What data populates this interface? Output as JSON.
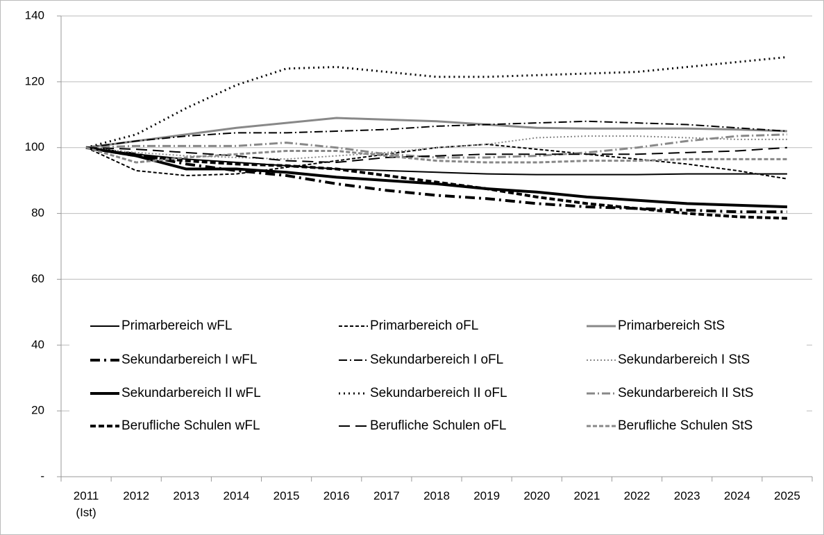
{
  "chart_data": {
    "type": "line",
    "categories": [
      "2011 (Ist)",
      "2012",
      "2013",
      "2014",
      "2015",
      "2016",
      "2017",
      "2018",
      "2019",
      "2020",
      "2021",
      "2022",
      "2023",
      "2024",
      "2025"
    ],
    "ylim": [
      0,
      140
    ],
    "yticks": [
      {
        "value": 0,
        "label": "-"
      },
      20,
      40,
      60,
      80,
      100,
      120,
      140
    ],
    "grid": true,
    "legend": "bottom",
    "series": [
      {
        "name": "Primarbereich wFL",
        "color": "#000000",
        "width": 2,
        "dash": "none",
        "values": [
          100,
          98,
          96.5,
          95.5,
          94.5,
          93.5,
          93,
          92.5,
          92,
          91.8,
          91.8,
          91.8,
          92,
          92,
          92
        ]
      },
      {
        "name": "Primarbereich oFL",
        "color": "#000000",
        "width": 2,
        "dash": "5 3",
        "values": [
          100,
          93,
          91.5,
          92,
          94,
          96,
          98,
          100,
          101,
          99.5,
          98,
          96.5,
          95,
          93,
          90.5
        ]
      },
      {
        "name": "Primarbereich StS",
        "color": "#888888",
        "width": 3,
        "dash": "none",
        "values": [
          100,
          102,
          104,
          106,
          107.5,
          109,
          108.5,
          108,
          107,
          106,
          105.8,
          105.8,
          105.8,
          105.5,
          105
        ]
      },
      {
        "name": "Sekundarbereich I wFL",
        "color": "#000000",
        "width": 4,
        "dash": "14 6 3 6",
        "values": [
          100,
          98,
          95,
          93,
          91.5,
          89,
          87,
          85.5,
          84.5,
          83,
          82,
          81.5,
          81,
          80.5,
          80.5
        ]
      },
      {
        "name": "Sekundarbereich I oFL",
        "color": "#000000",
        "width": 2,
        "dash": "12 4 2 4",
        "values": [
          100,
          102,
          103.5,
          104.5,
          104.5,
          105,
          105.5,
          106.5,
          107,
          107.5,
          108,
          107.5,
          107,
          106,
          105
        ]
      },
      {
        "name": "Sekundarbereich I StS",
        "color": "#888888",
        "width": 2,
        "dash": "2 3",
        "values": [
          100,
          98.5,
          97.5,
          97,
          96.5,
          97.5,
          98.5,
          100,
          101,
          103,
          103.5,
          103.5,
          103,
          102.5,
          102.5
        ]
      },
      {
        "name": "Sekundarbereich II wFL",
        "color": "#000000",
        "width": 4,
        "dash": "none",
        "values": [
          100,
          97.5,
          93.5,
          93.5,
          92.5,
          91,
          90,
          89,
          87.5,
          86.5,
          85,
          84,
          83,
          82.5,
          82
        ]
      },
      {
        "name": "Sekundarbereich II oFL",
        "color": "#000000",
        "width": 3,
        "dash": "2 5",
        "values": [
          100,
          104,
          112,
          119,
          124,
          124.5,
          123,
          121.5,
          121.5,
          122,
          122.5,
          123,
          124.5,
          126,
          127.5
        ]
      },
      {
        "name": "Sekundarbereich II StS",
        "color": "#888888",
        "width": 3,
        "dash": "12 4 2 4",
        "values": [
          100,
          100.5,
          100.5,
          100.5,
          101.5,
          100,
          98,
          97,
          97,
          97.5,
          98.5,
          100,
          102,
          103.5,
          104
        ]
      },
      {
        "name": "Berufliche Schulen wFL",
        "color": "#000000",
        "width": 4,
        "dash": "8 4",
        "values": [
          100,
          97.5,
          96,
          95,
          94.5,
          93.5,
          91.5,
          89.5,
          87.5,
          85,
          83,
          81.5,
          80,
          79,
          78.5
        ]
      },
      {
        "name": "Berufliche Schulen oFL",
        "color": "#000000",
        "width": 2,
        "dash": "16 8",
        "values": [
          100,
          99.5,
          98.5,
          97.5,
          96,
          95.5,
          97,
          97.5,
          98,
          98,
          98,
          98,
          98.5,
          99,
          100
        ]
      },
      {
        "name": "Berufliche Schulen StS",
        "color": "#888888",
        "width": 3,
        "dash": "6 3",
        "values": [
          100,
          95.5,
          97,
          98,
          99,
          99,
          97.5,
          96,
          95.5,
          95.5,
          96,
          96,
          96.5,
          96.5,
          96.5
        ]
      }
    ]
  }
}
